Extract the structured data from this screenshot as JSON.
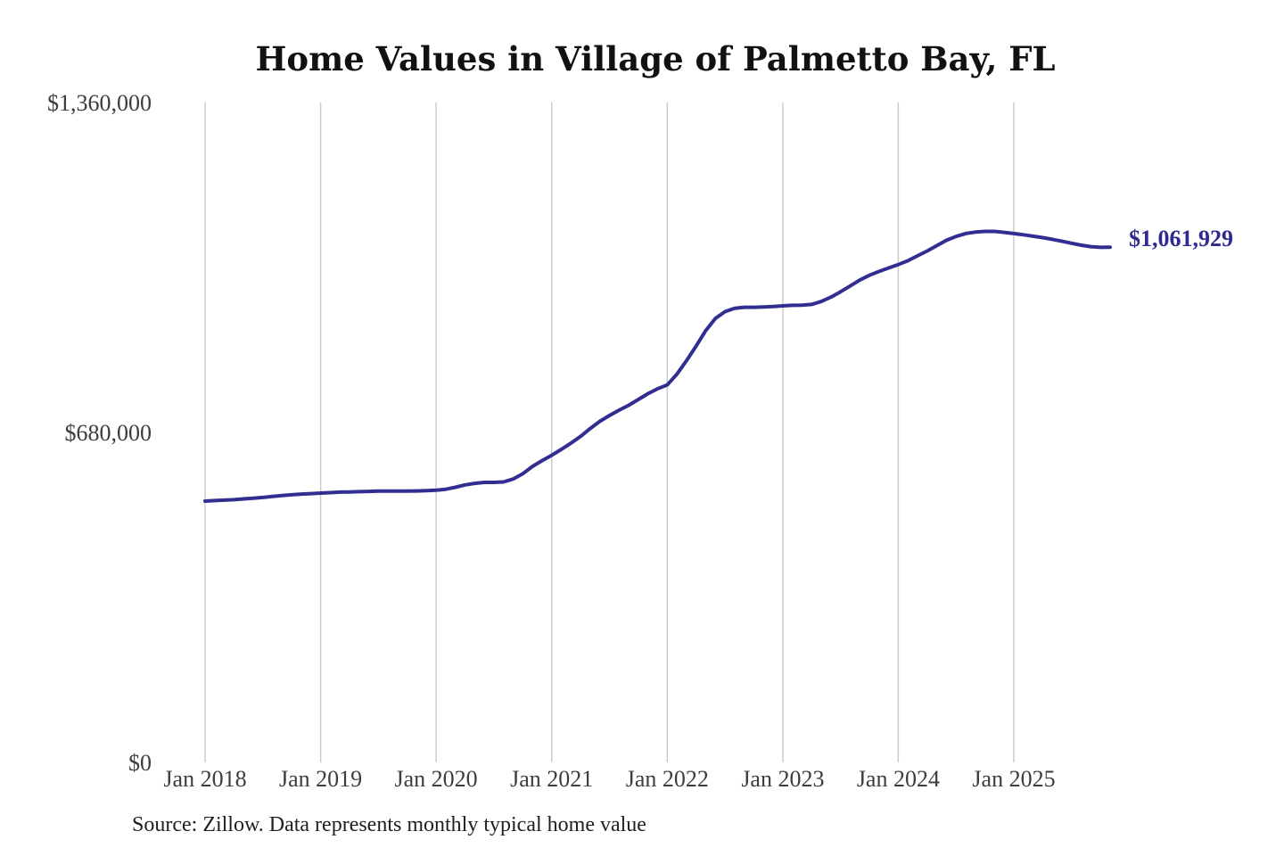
{
  "chart": {
    "title": "Home Values in Village of Palmetto Bay, FL",
    "end_label": "$1,061,929",
    "source_note": "Source: Zillow. Data represents monthly typical home value",
    "colors": {
      "line": "#322e91",
      "grid": "#c9c9c9",
      "axis_text": "#3d3d3d",
      "title_text": "#111111",
      "end_label_text": "#2e2a8e",
      "background": "#ffffff"
    }
  },
  "chart_data": {
    "type": "line",
    "title": "Home Values in Village of Palmetto Bay, FL",
    "series_name": "Monthly typical home value (USD)",
    "grid": "vertical-only",
    "legend": "none",
    "ylim": [
      0,
      1360000
    ],
    "yticks": [
      {
        "value": 0,
        "label": "$0"
      },
      {
        "value": 680000,
        "label": "$680,000"
      },
      {
        "value": 1360000,
        "label": "$1,360,000"
      }
    ],
    "xticks": [
      {
        "month_index": 0,
        "label": "Jan 2018"
      },
      {
        "month_index": 12,
        "label": "Jan 2019"
      },
      {
        "month_index": 24,
        "label": "Jan 2020"
      },
      {
        "month_index": 36,
        "label": "Jan 2021"
      },
      {
        "month_index": 48,
        "label": "Jan 2022"
      },
      {
        "month_index": 60,
        "label": "Jan 2023"
      },
      {
        "month_index": 72,
        "label": "Jan 2024"
      },
      {
        "month_index": 84,
        "label": "Jan 2025"
      }
    ],
    "last_point_label": "$1,061,929",
    "x": [
      "2018-01",
      "2018-02",
      "2018-03",
      "2018-04",
      "2018-05",
      "2018-06",
      "2018-07",
      "2018-08",
      "2018-09",
      "2018-10",
      "2018-11",
      "2018-12",
      "2019-01",
      "2019-02",
      "2019-03",
      "2019-04",
      "2019-05",
      "2019-06",
      "2019-07",
      "2019-08",
      "2019-09",
      "2019-10",
      "2019-11",
      "2019-12",
      "2020-01",
      "2020-02",
      "2020-03",
      "2020-04",
      "2020-05",
      "2020-06",
      "2020-07",
      "2020-08",
      "2020-09",
      "2020-10",
      "2020-11",
      "2020-12",
      "2021-01",
      "2021-02",
      "2021-03",
      "2021-04",
      "2021-05",
      "2021-06",
      "2021-07",
      "2021-08",
      "2021-09",
      "2021-10",
      "2021-11",
      "2021-12",
      "2022-01",
      "2022-02",
      "2022-03",
      "2022-04",
      "2022-05",
      "2022-06",
      "2022-07",
      "2022-08",
      "2022-09",
      "2022-10",
      "2022-11",
      "2022-12",
      "2023-01",
      "2023-02",
      "2023-03",
      "2023-04",
      "2023-05",
      "2023-06",
      "2023-07",
      "2023-08",
      "2023-09",
      "2023-10",
      "2023-11",
      "2023-12",
      "2024-01",
      "2024-02",
      "2024-03",
      "2024-04",
      "2024-05",
      "2024-06",
      "2024-07",
      "2024-08",
      "2024-09",
      "2024-10",
      "2024-11",
      "2024-12",
      "2025-01",
      "2025-02",
      "2025-03",
      "2025-04",
      "2025-05",
      "2025-06",
      "2025-07",
      "2025-08",
      "2025-09",
      "2025-10",
      "2025-11"
    ],
    "values": [
      538500,
      539500,
      540500,
      541500,
      543000,
      544500,
      546000,
      548000,
      550000,
      551500,
      553000,
      554000,
      555000,
      556000,
      557000,
      557500,
      558000,
      558500,
      559000,
      559000,
      559000,
      559000,
      559500,
      560000,
      561000,
      563000,
      567000,
      572000,
      575000,
      577000,
      577000,
      578000,
      584000,
      595000,
      610000,
      622000,
      633000,
      645000,
      658000,
      672000,
      688000,
      703000,
      715000,
      726000,
      736000,
      748000,
      760000,
      770000,
      778000,
      800000,
      828000,
      858000,
      890000,
      915000,
      929000,
      936000,
      938000,
      938000,
      938500,
      939500,
      941000,
      942000,
      942500,
      944000,
      950000,
      959000,
      970000,
      982000,
      994000,
      1004000,
      1012000,
      1019000,
      1026000,
      1034000,
      1044000,
      1054000,
      1065000,
      1076000,
      1084000,
      1090000,
      1093000,
      1094500,
      1094500,
      1092500,
      1090000,
      1087500,
      1084500,
      1081500,
      1078000,
      1074000,
      1070000,
      1066000,
      1063000,
      1061500,
      1061929
    ]
  }
}
